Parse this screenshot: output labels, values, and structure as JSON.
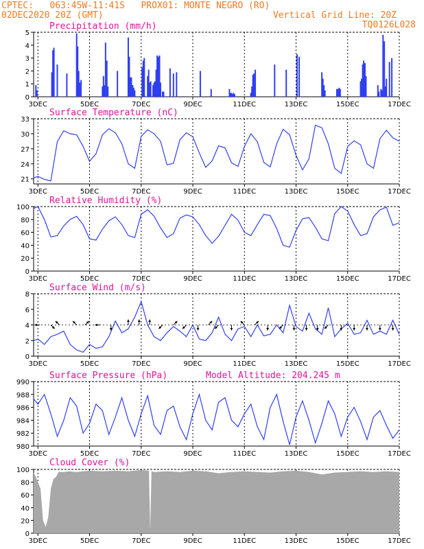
{
  "header": {
    "line1_left": "CPTEC:   063:45W-11:41S   PROX01: MONTE NEGRO (RO)",
    "line2_left": "02DEC2020 20Z (GMT)",
    "line2_right": "Vertical Grid Line: 20Z",
    "line3_right": "TQ0126L028"
  },
  "colors": {
    "header": "#f07a1e",
    "panel_title": "#e0129a",
    "series": "#2f3ff0",
    "cloud": "#a8a8a8",
    "wind_arrow": "#000000",
    "grid": "#000000"
  },
  "x_axis": {
    "start_day": 2.833,
    "end_day": 17.0,
    "tick_days": [
      3,
      5,
      7,
      9,
      11,
      13,
      15,
      17
    ],
    "tick_labels": [
      "3DEC",
      "5DEC",
      "7DEC",
      "9DEC",
      "11DEC",
      "13DEC",
      "15DEC",
      "17DEC"
    ],
    "vertical_grid_hour": "20Z"
  },
  "chart_data": [
    {
      "id": "precip",
      "type": "bar",
      "title": "Precipitation (mm/h)",
      "ylim": [
        0,
        5
      ],
      "yticks": [
        0,
        1,
        2,
        3,
        4,
        5
      ],
      "x": [
        2.92,
        2.96,
        3.54,
        3.58,
        3.62,
        3.75,
        4.12,
        4.5,
        4.54,
        4.58,
        4.62,
        4.67,
        5.5,
        5.54,
        5.58,
        5.62,
        5.67,
        5.71,
        6.08,
        6.5,
        6.54,
        6.58,
        6.62,
        6.67,
        6.71,
        6.75,
        7.04,
        7.08,
        7.12,
        7.25,
        7.29,
        7.33,
        7.37,
        7.46,
        7.5,
        7.54,
        7.58,
        7.62,
        7.67,
        7.71,
        7.75,
        7.83,
        7.87,
        8.12,
        8.25,
        8.37,
        9.29,
        9.71,
        10.42,
        10.46,
        10.5,
        10.54,
        10.58,
        10.62,
        11.25,
        11.29,
        11.33,
        11.37,
        11.42,
        12.17,
        12.62,
        13.04,
        13.12,
        14.0,
        14.04,
        14.08,
        14.12,
        14.58,
        14.62,
        14.67,
        14.71,
        15.5,
        15.54,
        15.58,
        15.62,
        15.67,
        15.71,
        16.17,
        16.21,
        16.29,
        16.33,
        16.37,
        16.42,
        16.46,
        16.5,
        16.62,
        16.71
      ],
      "values": [
        0.9,
        0.5,
        1.9,
        3.6,
        3.8,
        2.5,
        1.8,
        4.9,
        3.9,
        2.0,
        1.1,
        1.3,
        0.8,
        1.6,
        0.9,
        4.2,
        2.8,
        0.8,
        2.0,
        4.6,
        3.1,
        1.5,
        1.5,
        0.9,
        0.7,
        0.5,
        2.3,
        2.8,
        3.0,
        1.6,
        2.1,
        1.1,
        1.2,
        0.9,
        1.1,
        1.2,
        2.1,
        3.2,
        3.1,
        3.2,
        1.1,
        0.4,
        0.4,
        2.2,
        1.8,
        1.9,
        2.0,
        0.6,
        0.6,
        0.3,
        0.3,
        0.2,
        0.3,
        0.2,
        0.3,
        0.8,
        1.7,
        1.8,
        2.1,
        2.5,
        2.1,
        3.3,
        3.1,
        1.9,
        1.4,
        0.9,
        0.5,
        0.6,
        0.6,
        0.7,
        0.6,
        1.2,
        1.4,
        2.5,
        2.8,
        2.6,
        1.6,
        0.9,
        0.4,
        0.6,
        0.5,
        4.8,
        4.3,
        0.8,
        1.4,
        2.7,
        3.0
      ]
    },
    {
      "id": "temperature",
      "type": "line",
      "title": "Surface Temperature (nC)",
      "ylim": [
        20,
        33
      ],
      "yticks": [
        21,
        24,
        27,
        30,
        33
      ],
      "x": [
        2.833,
        3.0,
        3.25,
        3.5,
        3.75,
        4.0,
        4.25,
        4.5,
        4.75,
        5.0,
        5.25,
        5.5,
        5.75,
        6.0,
        6.25,
        6.5,
        6.75,
        7.0,
        7.25,
        7.5,
        7.75,
        8.0,
        8.25,
        8.5,
        8.75,
        9.0,
        9.25,
        9.5,
        9.75,
        10.0,
        10.25,
        10.5,
        10.75,
        11.0,
        11.25,
        11.5,
        11.75,
        12.0,
        12.25,
        12.5,
        12.75,
        13.0,
        13.25,
        13.5,
        13.75,
        14.0,
        14.25,
        14.5,
        14.75,
        15.0,
        15.25,
        15.5,
        15.75,
        16.0,
        16.25,
        16.5,
        16.75,
        17.0
      ],
      "values": [
        21.2,
        21.5,
        20.9,
        20.6,
        28.4,
        30.6,
        30.0,
        29.8,
        27.5,
        24.5,
        26.0,
        29.8,
        31.0,
        30.2,
        28.0,
        24.0,
        23.1,
        29.5,
        30.8,
        30.0,
        28.5,
        23.8,
        24.1,
        28.8,
        30.2,
        29.4,
        26.2,
        23.3,
        24.6,
        27.6,
        27.2,
        24.2,
        23.5,
        27.5,
        30.0,
        28.4,
        24.3,
        23.4,
        28.0,
        30.9,
        29.8,
        25.7,
        22.8,
        25.0,
        31.7,
        31.2,
        28.0,
        23.1,
        22.1,
        27.5,
        28.6,
        27.8,
        24.0,
        23.1,
        29.0,
        30.7,
        29.2,
        28.5
      ]
    },
    {
      "id": "humidity",
      "type": "line",
      "title": "Relative Humidity (%)",
      "ylim": [
        0,
        100
      ],
      "yticks": [
        0,
        20,
        40,
        60,
        80,
        100
      ],
      "x": [
        2.833,
        3.0,
        3.25,
        3.5,
        3.75,
        4.0,
        4.25,
        4.5,
        4.75,
        5.0,
        5.25,
        5.5,
        5.75,
        6.0,
        6.25,
        6.5,
        6.75,
        7.0,
        7.25,
        7.5,
        7.75,
        8.0,
        8.25,
        8.5,
        8.75,
        9.0,
        9.25,
        9.5,
        9.75,
        10.0,
        10.25,
        10.5,
        10.75,
        11.0,
        11.25,
        11.5,
        11.75,
        12.0,
        12.25,
        12.5,
        12.75,
        13.0,
        13.25,
        13.5,
        13.75,
        14.0,
        14.25,
        14.5,
        14.75,
        15.0,
        15.25,
        15.5,
        15.75,
        16.0,
        16.25,
        16.5,
        16.75,
        17.0
      ],
      "values": [
        97,
        100,
        80,
        53,
        55,
        70,
        80,
        85,
        72,
        50,
        48,
        65,
        78,
        84,
        72,
        55,
        52,
        88,
        95,
        85,
        67,
        52,
        58,
        82,
        87,
        84,
        72,
        55,
        43,
        54,
        71,
        88,
        79,
        60,
        55,
        72,
        88,
        86,
        66,
        40,
        37,
        63,
        81,
        83,
        68,
        50,
        47,
        89,
        100,
        93,
        72,
        55,
        58,
        84,
        95,
        99,
        71,
        75
      ]
    },
    {
      "id": "wind",
      "type": "line",
      "title": "Surface Wind (m/s)",
      "ylim": [
        0,
        8
      ],
      "yticks": [
        0,
        2,
        4,
        6,
        8
      ],
      "x": [
        2.833,
        3.0,
        3.25,
        3.5,
        3.75,
        4.0,
        4.25,
        4.5,
        4.75,
        5.0,
        5.25,
        5.5,
        5.75,
        6.0,
        6.25,
        6.5,
        6.75,
        7.0,
        7.25,
        7.5,
        7.75,
        8.0,
        8.25,
        8.5,
        8.75,
        9.0,
        9.25,
        9.5,
        9.75,
        10.0,
        10.25,
        10.5,
        10.75,
        11.0,
        11.25,
        11.5,
        11.75,
        12.0,
        12.25,
        12.5,
        12.75,
        13.0,
        13.25,
        13.5,
        13.75,
        14.0,
        14.25,
        14.5,
        14.75,
        15.0,
        15.25,
        15.5,
        15.75,
        16.0,
        16.25,
        16.5,
        16.75,
        17.0
      ],
      "values": [
        2.0,
        2.2,
        1.5,
        2.5,
        2.8,
        3.2,
        1.5,
        0.8,
        0.5,
        1.5,
        1.0,
        1.2,
        2.5,
        4.5,
        3.0,
        3.5,
        5.0,
        7.0,
        4.0,
        2.5,
        2.0,
        3.0,
        3.8,
        3.2,
        2.5,
        4.0,
        2.2,
        2.0,
        3.0,
        5.0,
        2.8,
        2.0,
        3.5,
        3.8,
        2.5,
        4.0,
        2.6,
        2.8,
        4.0,
        3.0,
        6.5,
        3.8,
        3.2,
        5.5,
        3.5,
        2.8,
        6.2,
        2.5,
        3.5,
        4.2,
        2.8,
        3.0,
        4.6,
        2.8,
        3.2,
        2.8,
        4.6,
        2.8
      ],
      "arrows": [
        {
          "day": 3.08,
          "dir": "W"
        },
        {
          "day": 3.5,
          "dir": "SE"
        },
        {
          "day": 3.83,
          "dir": "NW"
        },
        {
          "day": 4.5,
          "dir": "NW"
        },
        {
          "day": 4.83,
          "dir": "NE"
        },
        {
          "day": 5.42,
          "dir": "W"
        },
        {
          "day": 5.83,
          "dir": "S"
        },
        {
          "day": 6.5,
          "dir": "N"
        },
        {
          "day": 6.92,
          "dir": "N"
        },
        {
          "day": 7.33,
          "dir": "N"
        },
        {
          "day": 7.83,
          "dir": "SW"
        },
        {
          "day": 8.25,
          "dir": "NE"
        },
        {
          "day": 8.75,
          "dir": "SW"
        },
        {
          "day": 9.2,
          "dir": "S"
        },
        {
          "day": 9.6,
          "dir": "NE"
        },
        {
          "day": 10.0,
          "dir": "SW"
        },
        {
          "day": 10.5,
          "dir": "S"
        },
        {
          "day": 11.0,
          "dir": "NW"
        },
        {
          "day": 11.4,
          "dir": "NE"
        },
        {
          "day": 11.9,
          "dir": "S"
        },
        {
          "day": 12.5,
          "dir": "SW"
        },
        {
          "day": 12.92,
          "dir": "S"
        },
        {
          "day": 13.4,
          "dir": "S"
        },
        {
          "day": 13.83,
          "dir": "S"
        },
        {
          "day": 14.25,
          "dir": "SW"
        },
        {
          "day": 14.75,
          "dir": "S"
        },
        {
          "day": 15.25,
          "dir": "S"
        },
        {
          "day": 15.75,
          "dir": "S"
        },
        {
          "day": 16.25,
          "dir": "S"
        },
        {
          "day": 16.75,
          "dir": "S"
        }
      ]
    },
    {
      "id": "pressure",
      "type": "line",
      "title": "Surface Pressure (hPa)",
      "ylim": [
        980,
        990
      ],
      "yticks": [
        980,
        982,
        984,
        986,
        988,
        990
      ],
      "x": [
        2.833,
        3.0,
        3.25,
        3.5,
        3.75,
        4.0,
        4.25,
        4.5,
        4.75,
        5.0,
        5.25,
        5.5,
        5.75,
        6.0,
        6.25,
        6.5,
        6.75,
        7.0,
        7.25,
        7.5,
        7.75,
        8.0,
        8.25,
        8.5,
        8.75,
        9.0,
        9.25,
        9.5,
        9.75,
        10.0,
        10.25,
        10.5,
        10.75,
        11.0,
        11.25,
        11.5,
        11.75,
        12.0,
        12.25,
        12.5,
        12.75,
        13.0,
        13.25,
        13.5,
        13.75,
        14.0,
        14.25,
        14.5,
        14.75,
        15.0,
        15.25,
        15.5,
        15.75,
        16.0,
        16.25,
        16.5,
        16.75,
        17.0
      ],
      "values": [
        987.3,
        986.5,
        988.0,
        985.0,
        981.5,
        984.0,
        987.5,
        986.2,
        982.0,
        983.5,
        986.5,
        985.5,
        981.8,
        984.5,
        987.5,
        984.0,
        981.5,
        985.0,
        987.8,
        983.2,
        981.8,
        985.5,
        986.2,
        983.0,
        981.0,
        985.0,
        988.0,
        984.0,
        982.5,
        986.8,
        987.5,
        984.0,
        983.0,
        985.0,
        986.5,
        983.0,
        981.0,
        986.0,
        988.0,
        983.8,
        980.2,
        984.5,
        987.0,
        984.0,
        980.5,
        983.5,
        987.0,
        985.0,
        981.5,
        984.5,
        986.0,
        983.8,
        981.0,
        984.5,
        985.5,
        983.2,
        981.2,
        982.5
      ],
      "annotation": {
        "label": "Model Altitude:",
        "value": "204.245 m"
      }
    },
    {
      "id": "cloud",
      "type": "area",
      "title": "Cloud Cover (%)",
      "ylim": [
        0,
        100
      ],
      "yticks": [
        0,
        20,
        40,
        60,
        80,
        100
      ],
      "x": [
        2.833,
        2.9,
        3.0,
        3.1,
        3.2,
        3.3,
        3.4,
        3.5,
        3.6,
        3.7,
        3.8,
        4.0,
        4.2,
        4.5,
        5.0,
        5.5,
        6.0,
        6.5,
        7.0,
        7.3,
        7.35,
        7.4,
        7.5,
        8.0,
        8.5,
        9.0,
        9.5,
        10.0,
        10.5,
        11.0,
        11.5,
        12.0,
        12.5,
        13.0,
        13.5,
        14.0,
        14.5,
        15.0,
        15.5,
        16.0,
        16.5,
        17.0
      ],
      "values": [
        95,
        90,
        80,
        70,
        20,
        10,
        25,
        70,
        85,
        88,
        96,
        96,
        97,
        96,
        98,
        97,
        98,
        97,
        99,
        98,
        5,
        97,
        96,
        97,
        96,
        98,
        97,
        94,
        96,
        97,
        96,
        95,
        97,
        98,
        96,
        92,
        95,
        96,
        97,
        96,
        97,
        96
      ]
    }
  ]
}
